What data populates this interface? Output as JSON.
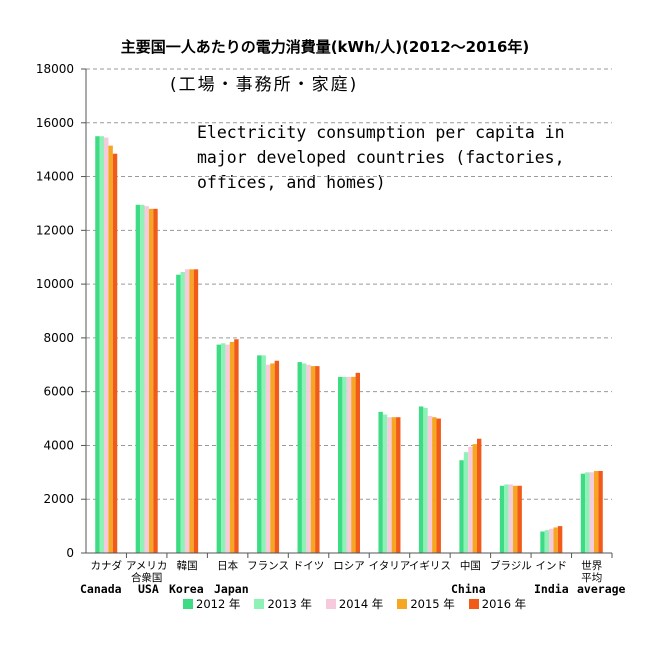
{
  "chart_data": {
    "type": "bar",
    "title": "主要国一人あたりの電力消費量(kWh/人)(2012〜2016年)",
    "subtitle": "(工場・事務所・家庭)",
    "annotation": "Electricity consumption per capita in\nmajor developed countries (factories,\noffices, and homes)",
    "ylim": [
      0,
      18000
    ],
    "yticks": [
      "0",
      "2000",
      "4000",
      "6000",
      "8000",
      "10000",
      "12000",
      "14000",
      "16000",
      "18000"
    ],
    "grid": true,
    "legend_position": "bottom",
    "categories": [
      "カナダ",
      "アメリカ合衆国",
      "韓国",
      "日本",
      "フランス",
      "ドイツ",
      "ロシア",
      "イタリア",
      "イギリス",
      "中国",
      "ブラジル",
      "インド",
      "世界平均"
    ],
    "english_labels": [
      {
        "category": "カナダ",
        "text": "Canada"
      },
      {
        "category": "アメリカ合衆国",
        "text": "USA"
      },
      {
        "category": "韓国",
        "text": "Korea"
      },
      {
        "category": "日本",
        "text": "Japan"
      },
      {
        "category": "中国",
        "text": "China"
      },
      {
        "category": "インド",
        "text": "India"
      },
      {
        "category": "世界平均",
        "text": "average"
      }
    ],
    "series": [
      {
        "name": "2012 年",
        "color": "#3ddc84",
        "values": [
          15500,
          12950,
          10350,
          7750,
          7350,
          7100,
          6550,
          5250,
          5450,
          3450,
          2500,
          800,
          2950
        ]
      },
      {
        "name": "2013 年",
        "color": "#8ef2b7",
        "values": [
          15500,
          12950,
          10450,
          7800,
          7350,
          7050,
          6550,
          5150,
          5400,
          3750,
          2550,
          850,
          3000
        ]
      },
      {
        "name": "2014 年",
        "color": "#f6c9dc",
        "values": [
          15450,
          12900,
          10550,
          7750,
          7000,
          7000,
          6550,
          5050,
          5100,
          3950,
          2550,
          900,
          3000
        ]
      },
      {
        "name": "2015 年",
        "color": "#f5a623",
        "values": [
          15150,
          12800,
          10550,
          7850,
          7050,
          6950,
          6550,
          5050,
          5050,
          4050,
          2500,
          950,
          3050
        ]
      },
      {
        "name": "2016 年",
        "color": "#f25a1a",
        "values": [
          14850,
          12800,
          10550,
          7950,
          7150,
          6950,
          6700,
          5050,
          5000,
          4250,
          2500,
          1000,
          3050
        ]
      }
    ]
  }
}
